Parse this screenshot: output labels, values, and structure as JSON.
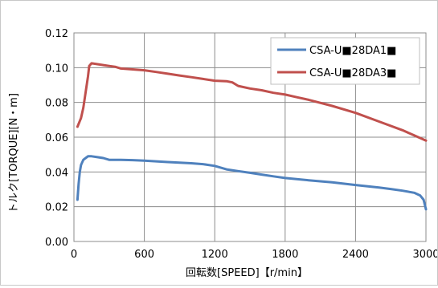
{
  "chart_data": {
    "type": "line",
    "title": "",
    "xlabel": "回転数[SPEED]【r/min】",
    "ylabel": "トルク[TORQUE][N・m]",
    "xlim": [
      0,
      3000
    ],
    "ylim": [
      0,
      0.12
    ],
    "xticks": [
      "0",
      "600",
      "1200",
      "1800",
      "2400",
      "3000"
    ],
    "yticks": [
      "0.00",
      "0.02",
      "0.04",
      "0.06",
      "0.08",
      "0.10",
      "0.12"
    ],
    "grid": true,
    "legend_position": "top-right",
    "series": [
      {
        "name": "CSA-U■28DA1■",
        "color": "#4f81bd",
        "x": [
          30,
          40,
          50,
          60,
          80,
          100,
          120,
          150,
          200,
          250,
          300,
          400,
          500,
          600,
          800,
          1000,
          1100,
          1200,
          1300,
          1400,
          1500,
          1600,
          1700,
          1800,
          2000,
          2200,
          2400,
          2600,
          2700,
          2800,
          2900,
          2950,
          2980,
          3000
        ],
        "y": [
          0.024,
          0.033,
          0.04,
          0.044,
          0.047,
          0.048,
          0.049,
          0.049,
          0.0485,
          0.048,
          0.047,
          0.047,
          0.0468,
          0.0465,
          0.0457,
          0.045,
          0.0445,
          0.0435,
          0.0415,
          0.0405,
          0.0395,
          0.0385,
          0.0375,
          0.0365,
          0.0352,
          0.034,
          0.0325,
          0.031,
          0.0302,
          0.0292,
          0.028,
          0.0265,
          0.024,
          0.0185
        ]
      },
      {
        "name": "CSA-U■28DA3■",
        "color": "#c0504d",
        "x": [
          30,
          60,
          80,
          100,
          120,
          130,
          150,
          200,
          250,
          300,
          350,
          400,
          500,
          600,
          700,
          800,
          900,
          1000,
          1100,
          1200,
          1300,
          1350,
          1400,
          1500,
          1600,
          1700,
          1800,
          1900,
          2000,
          2200,
          2400,
          2600,
          2800,
          2900,
          3000
        ],
        "y": [
          0.066,
          0.071,
          0.077,
          0.086,
          0.095,
          0.101,
          0.1025,
          0.102,
          0.1015,
          0.101,
          0.1005,
          0.0995,
          0.099,
          0.0985,
          0.0975,
          0.0965,
          0.0955,
          0.0945,
          0.0935,
          0.0925,
          0.0922,
          0.0915,
          0.0895,
          0.088,
          0.087,
          0.0855,
          0.0845,
          0.083,
          0.0815,
          0.078,
          0.074,
          0.069,
          0.064,
          0.061,
          0.058
        ]
      }
    ]
  }
}
